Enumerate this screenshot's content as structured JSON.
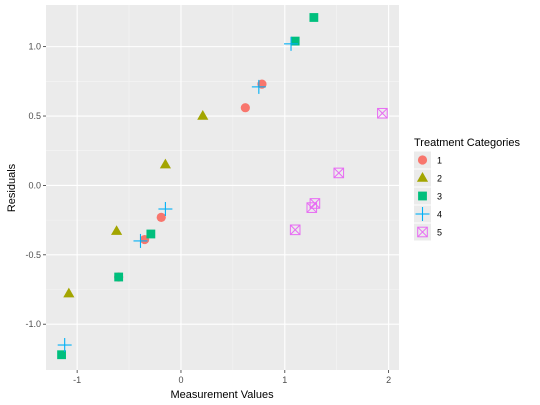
{
  "chart_data": {
    "type": "scatter",
    "title": "",
    "xlabel": "Measurement Values",
    "ylabel": "Residuals",
    "xlim": [
      -1.3,
      2.1
    ],
    "ylim": [
      -1.33,
      1.3
    ],
    "x_ticks": [
      -1,
      0,
      1,
      2
    ],
    "x_tick_labels": [
      "-1",
      "0",
      "1",
      "2"
    ],
    "y_ticks": [
      -1.0,
      -0.5,
      0.0,
      0.5,
      1.0
    ],
    "y_tick_labels": [
      "-1.0",
      "-0.5",
      "0.0",
      "0.5",
      "1.0"
    ],
    "grid": true,
    "legend": {
      "title": "Treatment Categories",
      "placement": "right"
    },
    "series": [
      {
        "name": "1",
        "shape": "circle",
        "color": "#F8766D",
        "points": [
          [
            -0.6,
            -0.66
          ],
          [
            -0.35,
            -0.39
          ],
          [
            -0.19,
            -0.23
          ],
          [
            0.62,
            0.56
          ],
          [
            0.78,
            0.73
          ]
        ]
      },
      {
        "name": "2",
        "shape": "triangle",
        "color": "#A3A500",
        "points": [
          [
            -1.08,
            -0.78
          ],
          [
            -0.62,
            -0.33
          ],
          [
            -0.15,
            0.15
          ],
          [
            0.21,
            0.5
          ]
        ]
      },
      {
        "name": "3",
        "shape": "square",
        "color": "#00BF7D",
        "points": [
          [
            -1.15,
            -1.22
          ],
          [
            -0.6,
            -0.66
          ],
          [
            -0.29,
            -0.35
          ],
          [
            1.1,
            1.04
          ],
          [
            1.28,
            1.21
          ]
        ]
      },
      {
        "name": "4",
        "shape": "plus",
        "color": "#00B0F6",
        "points": [
          [
            -1.12,
            -1.15
          ],
          [
            -0.39,
            -0.4
          ],
          [
            -0.15,
            -0.17
          ],
          [
            0.75,
            0.71
          ],
          [
            1.06,
            1.02
          ]
        ]
      },
      {
        "name": "5",
        "shape": "boxx",
        "color": "#E76BF3",
        "points": [
          [
            1.1,
            -0.32
          ],
          [
            1.26,
            -0.16
          ],
          [
            1.29,
            -0.13
          ],
          [
            1.52,
            0.09
          ],
          [
            1.94,
            0.52
          ]
        ]
      }
    ]
  }
}
